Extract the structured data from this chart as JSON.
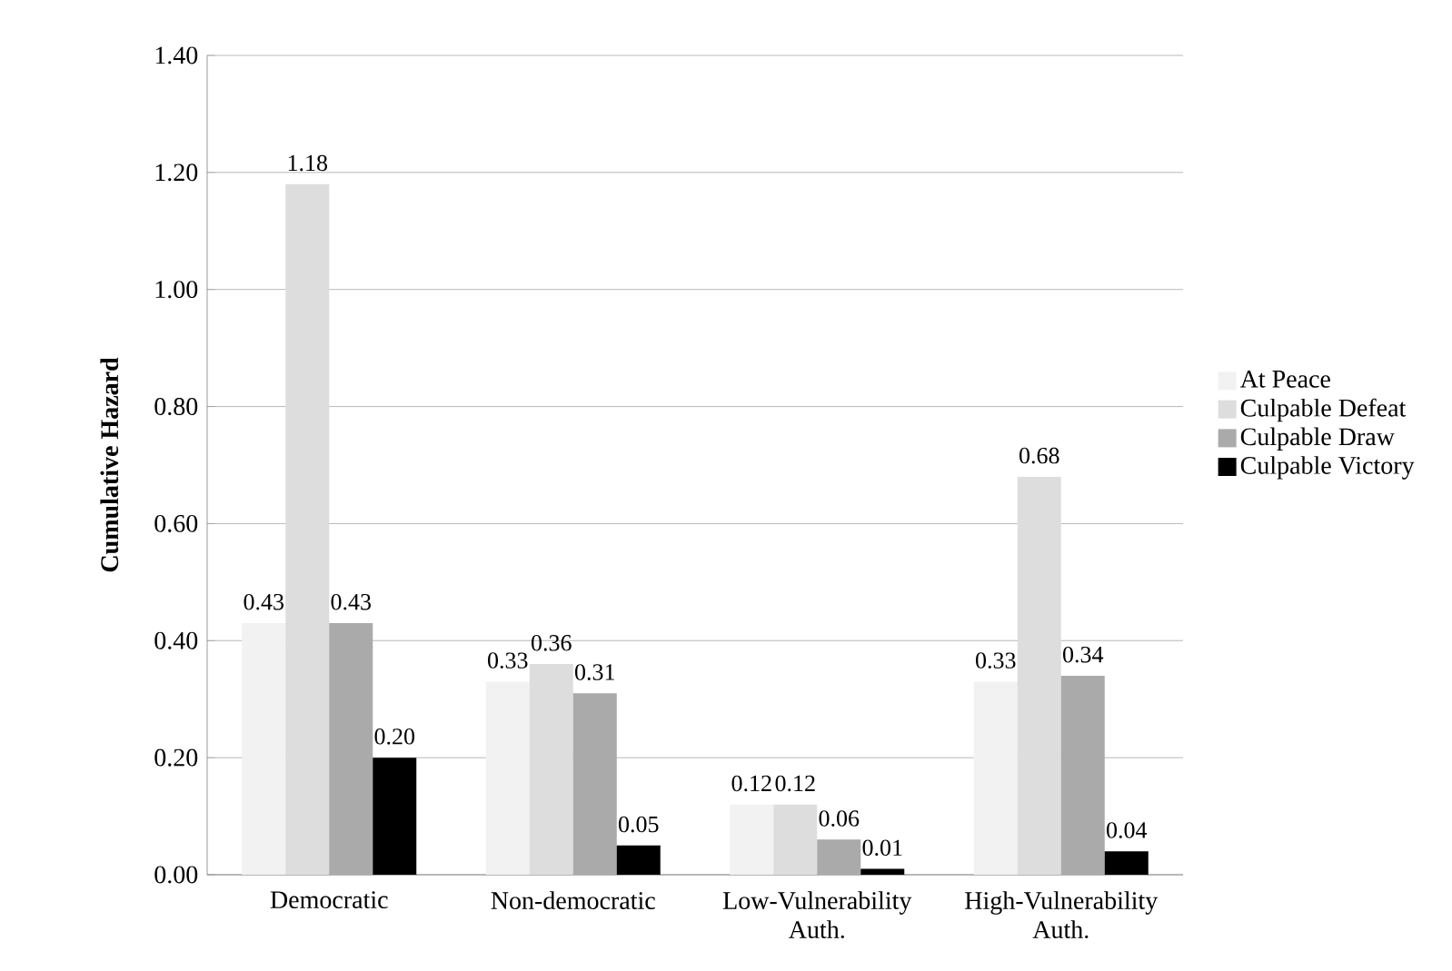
{
  "chart_data": {
    "type": "bar",
    "ylabel": "Cumulative Hazard",
    "categories": [
      "Democratic",
      "Non-democratic",
      "Low-Vulnerability Auth.",
      "High-Vulnerability Auth."
    ],
    "series": [
      {
        "name": "At Peace",
        "color": "#f2f2f2",
        "values": [
          0.43,
          0.33,
          0.12,
          0.33
        ],
        "value_labels": [
          "0.43",
          "0.33",
          "0.12",
          "0.33"
        ]
      },
      {
        "name": "Culpable Defeat",
        "color": "#dddddd",
        "values": [
          1.18,
          0.36,
          0.12,
          0.68
        ],
        "value_labels": [
          "1.18",
          "0.36",
          "0.12",
          "0.68"
        ]
      },
      {
        "name": "Culpable Draw",
        "color": "#aaaaaa",
        "values": [
          0.43,
          0.31,
          0.06,
          0.34
        ],
        "value_labels": [
          "0.43",
          "0.31",
          "0.06",
          "0.34"
        ]
      },
      {
        "name": "Culpable Victory",
        "color": "#000000",
        "values": [
          0.2,
          0.05,
          0.01,
          0.04
        ],
        "value_labels": [
          "0.20",
          "0.05",
          "0.01",
          "0.04"
        ]
      }
    ],
    "ylim": [
      0,
      1.4
    ],
    "yticks": [
      {
        "value": 0,
        "label": "0.00"
      },
      {
        "value": 0.2,
        "label": "0.20"
      },
      {
        "value": 0.4,
        "label": "0.40"
      },
      {
        "value": 0.6,
        "label": "0.60"
      },
      {
        "value": 0.8,
        "label": "0.80"
      },
      {
        "value": 1.0,
        "label": "1.00"
      },
      {
        "value": 1.2,
        "label": "1.20"
      },
      {
        "value": 1.4,
        "label": "1.40"
      }
    ],
    "grid": "y",
    "legend": "right"
  }
}
